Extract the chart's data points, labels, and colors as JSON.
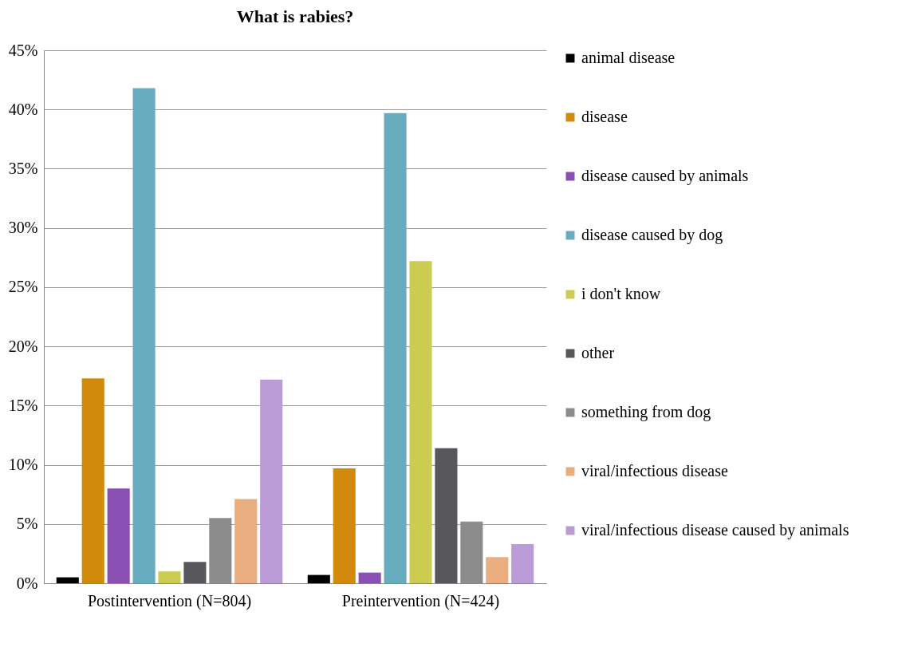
{
  "chart_data": {
    "type": "bar",
    "title": "What is rabies?",
    "categories": [
      "Postintervention (N=804)",
      "Preintervention (N=424)"
    ],
    "series": [
      {
        "name": "animal disease",
        "color": "#000000",
        "values": [
          0.5,
          0.7
        ]
      },
      {
        "name": "disease",
        "color": "#d28a0c",
        "values": [
          17.3,
          9.7
        ]
      },
      {
        "name": "disease caused by animals",
        "color": "#8a4fb3",
        "values": [
          8.0,
          0.9
        ]
      },
      {
        "name": "disease caused by dog",
        "color": "#68acbf",
        "values": [
          41.8,
          39.7
        ]
      },
      {
        "name": "i don't know",
        "color": "#cccb52",
        "values": [
          1.0,
          27.2
        ]
      },
      {
        "name": "other",
        "color": "#58585c",
        "values": [
          1.8,
          11.4
        ]
      },
      {
        "name": "something from dog",
        "color": "#8c8c8c",
        "values": [
          5.5,
          5.2
        ]
      },
      {
        "name": "viral/infectious disease",
        "color": "#eaad80",
        "values": [
          7.1,
          2.2
        ]
      },
      {
        "name": "viral/infectious disease caused by animals",
        "color": "#bb9bd6",
        "values": [
          17.2,
          3.3
        ]
      }
    ],
    "ylim": [
      0,
      45
    ],
    "yticks": [
      {
        "value": 0,
        "label": "0%"
      },
      {
        "value": 5,
        "label": "5%"
      },
      {
        "value": 10,
        "label": "10%"
      },
      {
        "value": 15,
        "label": "15%"
      },
      {
        "value": 20,
        "label": "20%"
      },
      {
        "value": 25,
        "label": "25%"
      },
      {
        "value": 30,
        "label": "30%"
      },
      {
        "value": 35,
        "label": "35%"
      },
      {
        "value": 40,
        "label": "40%"
      },
      {
        "value": 45,
        "label": "45%"
      }
    ],
    "grid": "y",
    "legend": "right"
  }
}
